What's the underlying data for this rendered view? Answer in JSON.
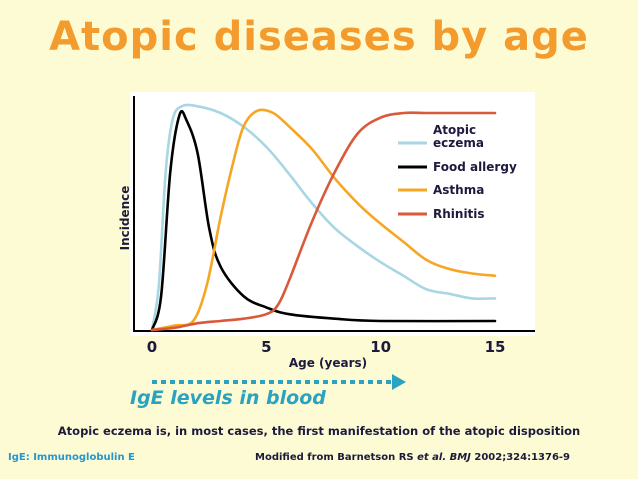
{
  "title": "Atopic diseases by age",
  "ige_label": "IgE levels in blood",
  "subtitle": "Atopic eczema is, in most cases, the first manifestation of the atopic disposition",
  "footer_left": "IgE: Immunoglobulin E",
  "footer_right": {
    "prefix": "Modified from Barnetson RS ",
    "italic": "et al. BMJ",
    "suffix": " 2002;324:1376-9"
  },
  "colors": {
    "title": "#f39c2d",
    "ige": "#2aa3c2",
    "footer_left": "#2596d0"
  },
  "chart_data": {
    "type": "line",
    "xlabel": "Age (years)",
    "ylabel": "Incidence",
    "xlim": [
      0,
      15
    ],
    "ylim": [
      0,
      100
    ],
    "xticks": [
      "0",
      "5",
      "10",
      "15"
    ],
    "yaxis_ticks_shown": false,
    "grid": false,
    "legend_position": "top-right",
    "series": [
      {
        "name": "Atopic eczema",
        "color": "#a9d6e3",
        "points": [
          [
            0,
            0
          ],
          [
            0.3,
            20
          ],
          [
            0.6,
            70
          ],
          [
            0.9,
            93
          ],
          [
            1.3,
            99
          ],
          [
            2,
            99
          ],
          [
            3,
            96
          ],
          [
            4,
            90
          ],
          [
            5,
            81
          ],
          [
            6,
            69
          ],
          [
            7,
            56
          ],
          [
            8,
            45
          ],
          [
            9,
            37
          ],
          [
            10,
            30
          ],
          [
            11,
            24
          ],
          [
            12,
            18
          ],
          [
            13,
            16
          ],
          [
            14,
            14
          ],
          [
            15,
            14
          ]
        ]
      },
      {
        "name": "Food allergy",
        "color": "#000000",
        "points": [
          [
            0,
            0
          ],
          [
            0.4,
            15
          ],
          [
            0.8,
            70
          ],
          [
            1.2,
            95
          ],
          [
            1.5,
            93
          ],
          [
            2,
            78
          ],
          [
            2.5,
            45
          ],
          [
            3,
            28
          ],
          [
            4,
            15
          ],
          [
            5,
            10
          ],
          [
            6,
            7
          ],
          [
            8,
            5
          ],
          [
            10,
            4
          ],
          [
            15,
            4
          ]
        ]
      },
      {
        "name": "Asthma",
        "color": "#f5a623",
        "points": [
          [
            0,
            0
          ],
          [
            1,
            2
          ],
          [
            1.8,
            4
          ],
          [
            2.4,
            20
          ],
          [
            3,
            50
          ],
          [
            3.5,
            72
          ],
          [
            4,
            90
          ],
          [
            4.6,
            97
          ],
          [
            5.3,
            96
          ],
          [
            6,
            90
          ],
          [
            7,
            80
          ],
          [
            8,
            67
          ],
          [
            9,
            56
          ],
          [
            10,
            47
          ],
          [
            11,
            39
          ],
          [
            12,
            31
          ],
          [
            13,
            27
          ],
          [
            14,
            25
          ],
          [
            15,
            24
          ]
        ]
      },
      {
        "name": "Rhinitis",
        "color": "#d85a3a",
        "points": [
          [
            0,
            0
          ],
          [
            1,
            1
          ],
          [
            2,
            3
          ],
          [
            3,
            4
          ],
          [
            4,
            5
          ],
          [
            5,
            7
          ],
          [
            5.5,
            11
          ],
          [
            6,
            22
          ],
          [
            7,
            48
          ],
          [
            8,
            70
          ],
          [
            9,
            87
          ],
          [
            10,
            94
          ],
          [
            11,
            96
          ],
          [
            12,
            96
          ],
          [
            13,
            96
          ],
          [
            15,
            96
          ]
        ]
      }
    ]
  }
}
